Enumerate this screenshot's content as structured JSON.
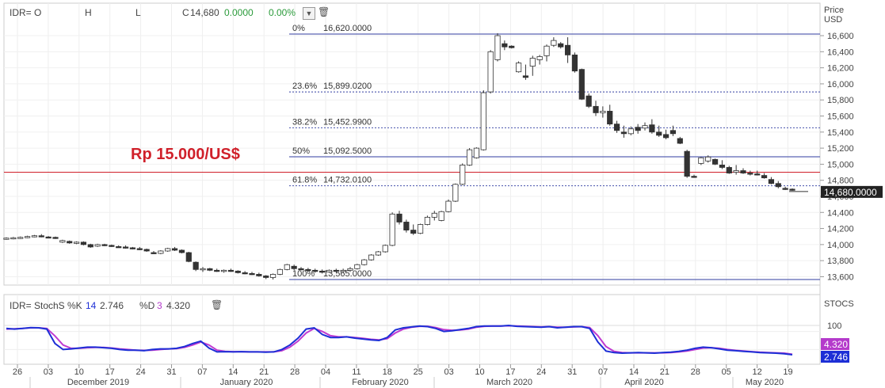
{
  "header": {
    "symbol": "IDR=",
    "o_label": "O",
    "h_label": "H",
    "l_label": "L",
    "c_label": "C",
    "close": "14,680",
    "change": "0.0000",
    "change_pct": "0.00%",
    "dropdown_icon": "chevron-down-icon",
    "trash_icon": "trash-icon"
  },
  "price_axis": {
    "title": "Price",
    "unit": "USD"
  },
  "annotation": "Rp 15.000/US$",
  "last_price_label": "14,680.0000",
  "stoch_header": {
    "symbol": "IDR=",
    "name": "StochS",
    "k_label": "%K",
    "k_period": "14",
    "k_value": "2.746",
    "d_label": "%D",
    "d_period": "3",
    "d_value": "4.320",
    "axis_title": "STOCS"
  },
  "colors": {
    "fib_line": "#5a64b4",
    "red_line": "#d0202a",
    "k_line": "#1d2fd6",
    "d_line": "#c03ad0",
    "k_badge": "#1d2fd6",
    "d_badge": "#b43acb",
    "candle_down": "#333333",
    "candle_up": "#ffffff"
  },
  "chart_data": [
    {
      "type": "candlestick",
      "title": "",
      "ylabel": "Price USD",
      "ylim": [
        13550,
        16720
      ],
      "yticks": [
        13600,
        13800,
        14000,
        14200,
        14400,
        14600,
        14800,
        15000,
        15200,
        15400,
        15600,
        15800,
        16000,
        16200,
        16400,
        16600
      ],
      "horizontal_line": {
        "value": 14900,
        "color": "#d0202a"
      },
      "last_price": 14680,
      "fibonacci": [
        {
          "label": "0%",
          "value": "16,620.0000",
          "level": 16620
        },
        {
          "label": "23.6%",
          "value": "15,899.0200",
          "level": 15899.02
        },
        {
          "label": "38.2%",
          "value": "15,452.9900",
          "level": 15452.99
        },
        {
          "label": "50%",
          "value": "15,092.5000",
          "level": 15092.5
        },
        {
          "label": "61.8%",
          "value": "14,732.0100",
          "level": 14732.01
        },
        {
          "label": "100%",
          "value": "13,565.0000",
          "level": 13565
        }
      ],
      "x_ticks": [
        "26",
        "03",
        "10",
        "17",
        "24",
        "31",
        "07",
        "14",
        "21",
        "28",
        "04",
        "11",
        "18",
        "25",
        "03",
        "10",
        "17",
        "24",
        "31",
        "07",
        "14",
        "21",
        "28",
        "05",
        "12",
        "19"
      ],
      "month_labels": [
        "December 2019",
        "January 2020",
        "February 2020",
        "March 2020",
        "April 2020",
        "May 2020"
      ],
      "candles": [
        [
          14070,
          14090,
          14060,
          14080
        ],
        [
          14075,
          14095,
          14065,
          14085
        ],
        [
          14085,
          14100,
          14070,
          14090
        ],
        [
          14090,
          14110,
          14080,
          14100
        ],
        [
          14100,
          14120,
          14090,
          14110
        ],
        [
          14110,
          14130,
          14090,
          14095
        ],
        [
          14095,
          14105,
          14080,
          14090
        ],
        [
          14090,
          14100,
          14070,
          14080
        ],
        [
          14030,
          14060,
          14020,
          14050
        ],
        [
          14040,
          14050,
          14010,
          14020
        ],
        [
          14020,
          14040,
          14005,
          14030
        ],
        [
          14030,
          14040,
          13990,
          14000
        ],
        [
          14000,
          14010,
          13960,
          13970
        ],
        [
          13980,
          14010,
          13970,
          14000
        ],
        [
          14000,
          14010,
          13980,
          13990
        ],
        [
          13990,
          14000,
          13970,
          13980
        ],
        [
          13975,
          13990,
          13960,
          13970
        ],
        [
          13970,
          13990,
          13950,
          13960
        ],
        [
          13960,
          13970,
          13940,
          13950
        ],
        [
          13950,
          13970,
          13930,
          13940
        ],
        [
          13940,
          13950,
          13910,
          13920
        ],
        [
          13900,
          13920,
          13880,
          13890
        ],
        [
          13890,
          13930,
          13880,
          13920
        ],
        [
          13920,
          13960,
          13910,
          13950
        ],
        [
          13950,
          13970,
          13920,
          13930
        ],
        [
          13930,
          13940,
          13890,
          13900
        ],
        [
          13900,
          13910,
          13780,
          13790
        ],
        [
          13780,
          13790,
          13670,
          13690
        ],
        [
          13690,
          13720,
          13660,
          13700
        ],
        [
          13700,
          13710,
          13670,
          13680
        ],
        [
          13680,
          13700,
          13660,
          13670
        ],
        [
          13670,
          13690,
          13650,
          13680
        ],
        [
          13680,
          13700,
          13660,
          13670
        ],
        [
          13670,
          13680,
          13640,
          13650
        ],
        [
          13650,
          13670,
          13630,
          13640
        ],
        [
          13640,
          13660,
          13620,
          13630
        ],
        [
          13630,
          13650,
          13600,
          13610
        ],
        [
          13610,
          13620,
          13570,
          13590
        ],
        [
          13590,
          13640,
          13565,
          13630
        ],
        [
          13630,
          13700,
          13620,
          13690
        ],
        [
          13690,
          13760,
          13680,
          13750
        ],
        [
          13730,
          13750,
          13680,
          13700
        ],
        [
          13700,
          13720,
          13680,
          13690
        ],
        [
          13690,
          13710,
          13660,
          13680
        ],
        [
          13680,
          13700,
          13650,
          13670
        ],
        [
          13670,
          13690,
          13640,
          13660
        ],
        [
          13660,
          13690,
          13650,
          13680
        ],
        [
          13680,
          13700,
          13660,
          13670
        ],
        [
          13670,
          13700,
          13650,
          13680
        ],
        [
          13680,
          13720,
          13660,
          13700
        ],
        [
          13700,
          13760,
          13690,
          13750
        ],
        [
          13750,
          13820,
          13740,
          13810
        ],
        [
          13810,
          13880,
          13800,
          13870
        ],
        [
          13870,
          13920,
          13860,
          13910
        ],
        [
          13910,
          14000,
          13900,
          13990
        ],
        [
          13990,
          14400,
          13980,
          14380
        ],
        [
          14380,
          14420,
          14250,
          14280
        ],
        [
          14280,
          14310,
          14150,
          14180
        ],
        [
          14180,
          14250,
          14120,
          14140
        ],
        [
          14140,
          14260,
          14130,
          14250
        ],
        [
          14250,
          14360,
          14240,
          14340
        ],
        [
          14340,
          14420,
          14300,
          14390
        ],
        [
          14300,
          14420,
          14290,
          14410
        ],
        [
          14410,
          14560,
          14400,
          14540
        ],
        [
          14540,
          14760,
          14530,
          14750
        ],
        [
          14750,
          15010,
          14740,
          14990
        ],
        [
          14990,
          15200,
          14980,
          15180
        ],
        [
          15080,
          15210,
          15070,
          15200
        ],
        [
          15180,
          15920,
          15170,
          15890
        ],
        [
          15900,
          16420,
          15880,
          16400
        ],
        [
          16300,
          16630,
          16280,
          16600
        ],
        [
          16500,
          16540,
          16420,
          16460
        ],
        [
          16470,
          16480,
          16440,
          16450
        ],
        [
          16150,
          16280,
          16140,
          16260
        ],
        [
          16100,
          16240,
          16050,
          16080
        ],
        [
          16220,
          16350,
          16100,
          16320
        ],
        [
          16300,
          16360,
          16240,
          16340
        ],
        [
          16350,
          16490,
          16280,
          16470
        ],
        [
          16480,
          16580,
          16460,
          16540
        ],
        [
          16500,
          16520,
          16440,
          16460
        ],
        [
          16480,
          16580,
          16260,
          16360
        ],
        [
          16360,
          16390,
          16140,
          16160
        ],
        [
          16180,
          16190,
          15800,
          15810
        ],
        [
          15850,
          15880,
          15700,
          15720
        ],
        [
          15720,
          15790,
          15600,
          15640
        ],
        [
          15640,
          15720,
          15580,
          15660
        ],
        [
          15660,
          15740,
          15480,
          15500
        ],
        [
          15500,
          15540,
          15390,
          15420
        ],
        [
          15400,
          15480,
          15330,
          15380
        ],
        [
          15380,
          15470,
          15360,
          15440
        ],
        [
          15460,
          15500,
          15380,
          15420
        ],
        [
          15450,
          15520,
          15420,
          15480
        ],
        [
          15490,
          15560,
          15380,
          15400
        ],
        [
          15400,
          15480,
          15340,
          15360
        ],
        [
          15370,
          15430,
          15310,
          15330
        ],
        [
          15420,
          15480,
          15350,
          15380
        ],
        [
          15320,
          15340,
          15250,
          15260
        ],
        [
          15160,
          15180,
          14830,
          14850
        ],
        [
          14850,
          14870,
          14830,
          14840
        ],
        [
          15010,
          15090,
          14990,
          15080
        ],
        [
          15040,
          15110,
          15020,
          15090
        ],
        [
          15060,
          15070,
          14990,
          15000
        ],
        [
          14990,
          15050,
          14940,
          14960
        ],
        [
          14960,
          14980,
          14880,
          14890
        ],
        [
          14900,
          14990,
          14870,
          14920
        ],
        [
          14920,
          14950,
          14880,
          14890
        ],
        [
          14890,
          14920,
          14860,
          14880
        ],
        [
          14880,
          14920,
          14860,
          14870
        ],
        [
          14860,
          14890,
          14820,
          14830
        ],
        [
          14810,
          14840,
          14750,
          14760
        ],
        [
          14760,
          14790,
          14700,
          14720
        ],
        [
          14700,
          14720,
          14680,
          14690
        ],
        [
          14690,
          14700,
          14670,
          14680
        ]
      ]
    },
    {
      "type": "line",
      "title": "",
      "ylim": [
        -10,
        115
      ],
      "yticks": [
        100
      ],
      "series": [
        {
          "name": "%K",
          "values": [
            90,
            88,
            90,
            93,
            92,
            88,
            40,
            20,
            22,
            25,
            28,
            28,
            26,
            24,
            20,
            18,
            18,
            16,
            20,
            22,
            22,
            24,
            30,
            40,
            48,
            25,
            12,
            13,
            12,
            13,
            12,
            12,
            11,
            12,
            20,
            35,
            58,
            88,
            92,
            70,
            60,
            60,
            62,
            58,
            55,
            52,
            50,
            60,
            85,
            92,
            95,
            98,
            96,
            90,
            80,
            82,
            86,
            90,
            96,
            98,
            98,
            98,
            100,
            97,
            96,
            95,
            94,
            96,
            92,
            94,
            96,
            96,
            90,
            45,
            15,
            10,
            8,
            9,
            10,
            9,
            8,
            10,
            11,
            14,
            18,
            24,
            28,
            26,
            22,
            18,
            16,
            14,
            12,
            10,
            9,
            8,
            6,
            2.746
          ]
        },
        {
          "name": "%D",
          "values": [
            88,
            89,
            90,
            92,
            92,
            90,
            65,
            35,
            24,
            24,
            26,
            27,
            27,
            25,
            22,
            20,
            18,
            17,
            18,
            20,
            22,
            23,
            27,
            35,
            45,
            35,
            18,
            14,
            13,
            13,
            12,
            12,
            12,
            12,
            16,
            28,
            48,
            75,
            90,
            80,
            66,
            62,
            62,
            60,
            57,
            54,
            52,
            56,
            75,
            88,
            94,
            97,
            97,
            93,
            86,
            84,
            85,
            88,
            94,
            97,
            98,
            98,
            99,
            98,
            97,
            96,
            95,
            96,
            94,
            94,
            95,
            96,
            93,
            66,
            30,
            14,
            10,
            9,
            9,
            9,
            9,
            9,
            10,
            12,
            15,
            20,
            25,
            26,
            24,
            20,
            17,
            15,
            13,
            11,
            10,
            9,
            8,
            4.32
          ]
        }
      ]
    }
  ]
}
